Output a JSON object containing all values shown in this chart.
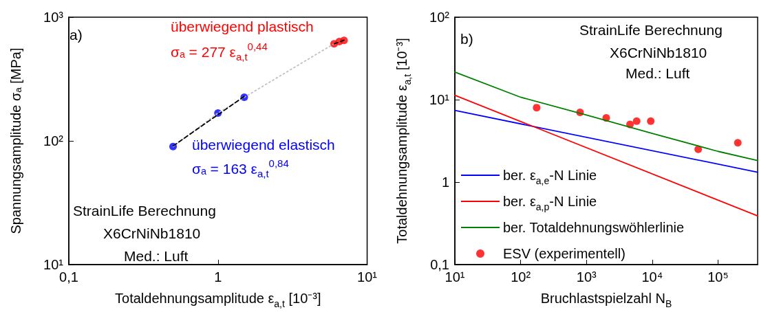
{
  "chart_data": [
    {
      "type": "scatter",
      "xlabel": "Totaldehnungsamplitude ε$_{a,t}$ [10⁻³]",
      "ylabel": "Spannungsamplitude σₐ [MPa]",
      "log": "xy",
      "xlim": [
        0.1,
        10
      ],
      "ylim": [
        10,
        1000
      ],
      "xticks": [
        {
          "value": 0.1,
          "label": "0,1"
        },
        1,
        {
          "value": 10,
          "label": "10¹"
        }
      ],
      "yticks": [
        {
          "value": 10,
          "label": "10¹"
        },
        {
          "value": 100,
          "label": "10²"
        },
        {
          "value": 1000,
          "label": "10³"
        }
      ],
      "grid": false,
      "legend": false,
      "series": [
        {
          "type": "line",
          "color": "#c0c0c0",
          "line_style": "dotted",
          "marker": "none",
          "x": [
            0.5,
            1,
            1.5,
            6,
            6.5,
            7
          ],
          "values": [
            90,
            168,
            225,
            610,
            635,
            650
          ]
        },
        {
          "type": "line",
          "color": "#000000",
          "line_style": "dashed",
          "marker": "none",
          "x": [
            0.5,
            1.5
          ],
          "values": [
            91,
            229
          ]
        },
        {
          "type": "line",
          "color": "#000000",
          "line_style": "dashed",
          "marker": "none",
          "x": [
            6,
            7
          ],
          "values": [
            609,
            652
          ]
        },
        {
          "name": "überwiegend elastisch",
          "color": "#0000ff",
          "marker": "circle",
          "x": [
            0.5,
            1,
            1.5
          ],
          "values": [
            90,
            168,
            225
          ]
        },
        {
          "name": "überwiegend plastisch",
          "color": "#ff0000",
          "marker": "circle",
          "x": [
            6,
            6.5,
            7
          ],
          "values": [
            610,
            635,
            650
          ]
        }
      ],
      "annotations": [
        "a)",
        "σₐ = 277 ε$_{a,t}$$^{0,44}$",
        "σₐ = 163 ε$_{a,t}$$^{0,84}$",
        "StrainLife Berechnung",
        "X6CrNiNb1810",
        "Med.: Luft"
      ]
    },
    {
      "type": "line",
      "xlabel": "Bruchlastspielzahl N$_{B}$",
      "ylabel": "Totaldehnungsamplitude ε$_{a,t}$ [10⁻³]",
      "log": "xy",
      "xlim": [
        10,
        400000
      ],
      "ylim": [
        0.1,
        100
      ],
      "xticks": [
        {
          "value": 10,
          "label": "10¹"
        },
        {
          "value": 100,
          "label": "10²"
        },
        {
          "value": 1000,
          "label": "10³"
        },
        {
          "value": 10000,
          "label": "10⁴"
        },
        {
          "value": 100000,
          "label": "10⁵"
        }
      ],
      "yticks": [
        {
          "value": 0.1,
          "label": "0,1"
        },
        1,
        {
          "value": 10,
          "label": "10¹"
        },
        {
          "value": 100,
          "label": "10²"
        }
      ],
      "grid": false,
      "legend": "bottom left",
      "series": [
        {
          "name": "ber. ε$_{a,e}$-N Linie",
          "color": "#0000ff",
          "marker": "none",
          "x": [
            10,
            400000
          ],
          "values": [
            7.4,
            1.32
          ]
        },
        {
          "name": "ber. ε$_{a,p}$-N Linie",
          "color": "#ff0000",
          "marker": "none",
          "x": [
            10,
            400000
          ],
          "values": [
            11.3,
            0.39
          ]
        },
        {
          "name": "ber. Totaldehnungswöhlerlinie",
          "color": "#008000",
          "marker": "none",
          "x": [
            10,
            100,
            1000,
            10000,
            100000,
            400000
          ],
          "values": [
            21.6,
            10.7,
            6.5,
            3.9,
            2.36,
            1.83
          ]
        },
        {
          "type": "scatter",
          "name": "ESV (experimentell)",
          "color": "#ff0000",
          "marker": "circle",
          "x": [
            175,
            800,
            2000,
            4600,
            5800,
            9500,
            50000,
            200000
          ],
          "values": [
            8,
            7,
            6,
            5,
            5.5,
            5.5,
            2.5,
            3
          ]
        }
      ],
      "annotations": [
        "b)",
        "StrainLife Berechnung",
        "X6CrNiNb1810",
        "Med.: Luft"
      ]
    }
  ]
}
